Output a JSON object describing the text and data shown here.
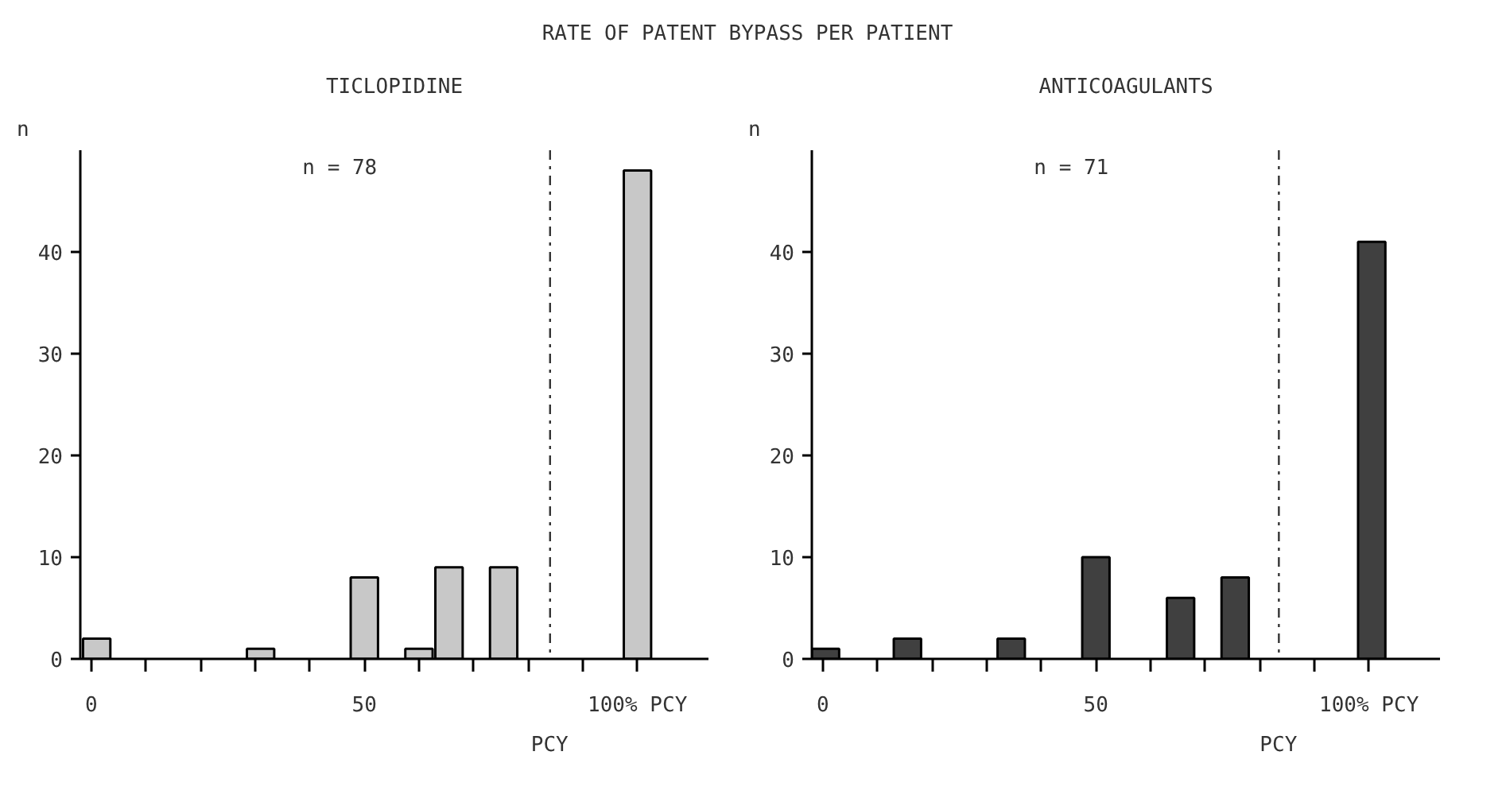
{
  "chart_data": [
    {
      "type": "other",
      "title": "RATE OF PATENT BYPASS PER PATIENT"
    },
    {
      "type": "bar",
      "title": "TICLOPIDINE",
      "ylabel": "n",
      "annotations": [
        "n = 78"
      ],
      "x": [
        1,
        31,
        50,
        60,
        65.5,
        75.5,
        100
      ],
      "values": [
        2,
        1,
        8,
        1,
        9,
        9,
        48
      ],
      "color": "#c8c8c8",
      "xlim": [
        -2,
        113
      ],
      "ylim": [
        0,
        50
      ],
      "xticks": [
        {
          "value": 0,
          "label": "0"
        },
        {
          "value": 10,
          "label": null
        },
        {
          "value": 20,
          "label": null
        },
        {
          "value": 30,
          "label": null
        },
        {
          "value": 40,
          "label": null
        },
        {
          "value": 50,
          "label": "50"
        },
        {
          "value": 60,
          "label": null
        },
        {
          "value": 70,
          "label": null
        },
        {
          "value": 80,
          "label": null
        },
        {
          "value": 90,
          "label": null
        },
        {
          "value": 100,
          "label": "100% PCY"
        }
      ],
      "yticks": [
        0,
        10,
        20,
        30,
        40
      ],
      "ref_lines": [
        {
          "axis": "x",
          "value": 84,
          "label": "PCY",
          "line_style": "dashdot"
        }
      ],
      "grid": false
    },
    {
      "type": "bar",
      "title": "ANTICOAGULANTS",
      "ylabel": "n",
      "annotations": [
        "n = 71"
      ],
      "x": [
        0.5,
        15.5,
        34.5,
        50,
        65.5,
        75.5,
        100.5
      ],
      "values": [
        1,
        2,
        2,
        10,
        6,
        8,
        41
      ],
      "color": "#404040",
      "xlim": [
        -2,
        113
      ],
      "ylim": [
        0,
        50
      ],
      "xticks": [
        {
          "value": 0,
          "label": "0"
        },
        {
          "value": 10,
          "label": null
        },
        {
          "value": 20,
          "label": null
        },
        {
          "value": 30,
          "label": null
        },
        {
          "value": 40,
          "label": null
        },
        {
          "value": 50,
          "label": "50"
        },
        {
          "value": 60,
          "label": null
        },
        {
          "value": 70,
          "label": null
        },
        {
          "value": 80,
          "label": null
        },
        {
          "value": 90,
          "label": null
        },
        {
          "value": 100,
          "label": "100% PCY"
        }
      ],
      "yticks": [
        0,
        10,
        20,
        30,
        40
      ],
      "ref_lines": [
        {
          "axis": "x",
          "value": 83.5,
          "label": "PCY",
          "line_style": "dashdot"
        }
      ],
      "grid": false
    }
  ]
}
